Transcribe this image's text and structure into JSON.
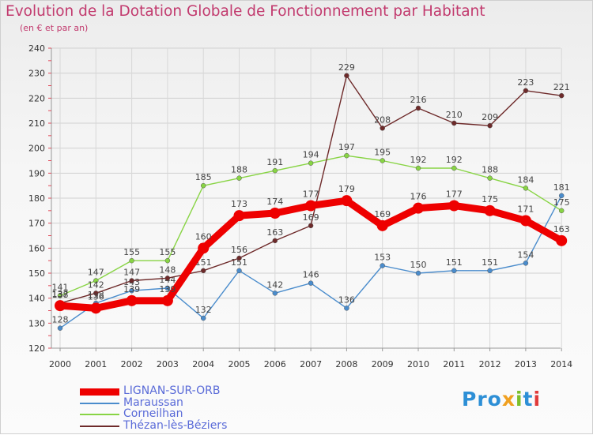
{
  "header": {
    "title": "Evolution de la Dotation Globale de Fonctionnement par Habitant",
    "subtitle": "(en € et par an)"
  },
  "logo": {
    "text": "Proxiti",
    "colors": [
      "#2d8fd6",
      "#f0a020",
      "#7cbf2a",
      "#e03a3a"
    ]
  },
  "chart_data": {
    "type": "line",
    "x": [
      2000,
      2001,
      2002,
      2003,
      2004,
      2005,
      2006,
      2007,
      2008,
      2009,
      2010,
      2011,
      2012,
      2013,
      2014
    ],
    "x_tick_labels": [
      "2000",
      "2001",
      "2002",
      "2003",
      "2004",
      "2005",
      "2006",
      "2007",
      "2008",
      "2009",
      "2010",
      "2011",
      "2012",
      "2013",
      "2014"
    ],
    "ylim": [
      120,
      240
    ],
    "y_ticks": [
      120,
      130,
      140,
      150,
      160,
      170,
      180,
      190,
      200,
      210,
      220,
      230,
      240
    ],
    "grid": true,
    "legend_position": "bottom-left",
    "series": [
      {
        "name": "LIGNAN-SUR-ORB",
        "color": "#ee0000",
        "emphasis": true,
        "values": [
          137,
          136,
          139,
          139,
          160,
          173,
          174,
          177,
          179,
          169,
          176,
          177,
          175,
          171,
          163
        ]
      },
      {
        "name": "Maraussan",
        "color": "#4a8ccc",
        "values": [
          128,
          138,
          143,
          144,
          132,
          151,
          142,
          146,
          136,
          153,
          150,
          151,
          151,
          154,
          181
        ]
      },
      {
        "name": "Corneilhan",
        "color": "#88d444",
        "values": [
          141,
          147,
          155,
          155,
          185,
          188,
          191,
          194,
          197,
          195,
          192,
          192,
          188,
          184,
          175
        ]
      },
      {
        "name": "Thézan-lès-Béziers",
        "color": "#6e2a2a",
        "values": [
          138,
          142,
          147,
          148,
          151,
          156,
          163,
          169,
          229,
          208,
          216,
          210,
          209,
          223,
          221
        ]
      }
    ]
  }
}
